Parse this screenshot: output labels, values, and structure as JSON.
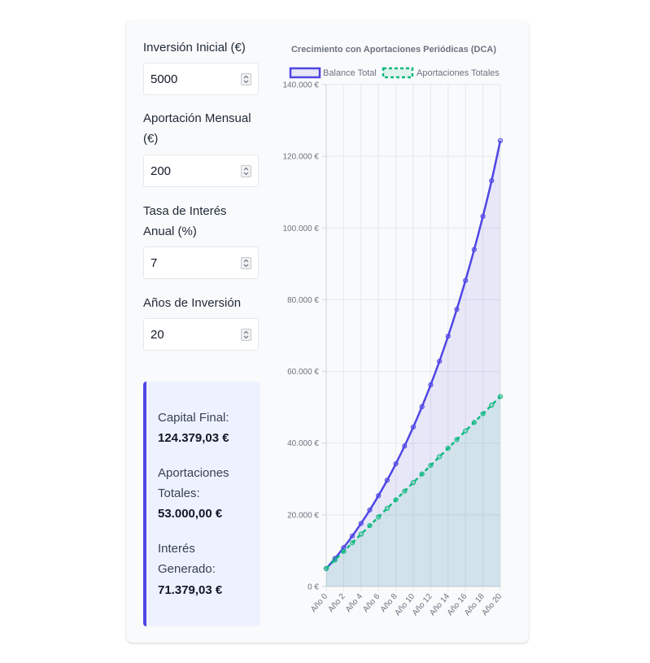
{
  "form": {
    "initial": {
      "label": "Inversión Inicial (€)",
      "value": "5000"
    },
    "monthly": {
      "label": "Aportación Mensual (€)",
      "value": "200"
    },
    "rate": {
      "label": "Tasa de Interés Anual (%)",
      "value": "7"
    },
    "years": {
      "label": "Años de Inversión",
      "value": "20"
    }
  },
  "results": {
    "final_label": "Capital Final:",
    "final_value": "124.379,03 €",
    "contrib_label": "Aportaciones Totales:",
    "contrib_value": "53.000,00 €",
    "interest_label": "Interés Generado:",
    "interest_value": "71.379,03 €"
  },
  "icons": {
    "spinner": "number-spinner-icon"
  },
  "colors": {
    "balance": "#4f46e5",
    "contributions": "#10b981",
    "accent": "#4f46e5",
    "results_bg": "#eef2ff"
  },
  "chart_data": {
    "type": "line",
    "title": "Crecimiento con Aportaciones Periódicas (DCA)",
    "legend_position": "top",
    "grid": true,
    "ylim": [
      0,
      140000
    ],
    "y_ticks": [
      "0 €",
      "20.000 €",
      "40.000 €",
      "60.000 €",
      "80.000 €",
      "100.000 €",
      "120.000 €",
      "140.000 €"
    ],
    "x": [
      "Año 0",
      "Año 1",
      "Año 2",
      "Año 3",
      "Año 4",
      "Año 5",
      "Año 6",
      "Año 7",
      "Año 8",
      "Año 9",
      "Año 10",
      "Año 11",
      "Año 12",
      "Año 13",
      "Año 14",
      "Año 15",
      "Año 16",
      "Año 17",
      "Año 18",
      "Año 19",
      "Año 20"
    ],
    "x_tick_labels": [
      "Año 0",
      "Año 2",
      "Año 4",
      "Año 6",
      "Año 8",
      "Año 10",
      "Año 12",
      "Año 14",
      "Año 16",
      "Año 18",
      "Año 20"
    ],
    "series": [
      {
        "name": "Balance Total",
        "style": "solid-area",
        "values": [
          5000,
          7827,
          10859,
          14110,
          17596,
          21334,
          25343,
          29641,
          34250,
          39192,
          44491,
          50173,
          56266,
          62799,
          69804,
          77316,
          85370,
          94007,
          103268,
          113198,
          124379
        ]
      },
      {
        "name": "Aportaciones Totales",
        "style": "dashed-area",
        "values": [
          5000,
          7400,
          9800,
          12200,
          14600,
          17000,
          19400,
          21800,
          24200,
          26600,
          29000,
          31400,
          33800,
          36200,
          38600,
          41000,
          43400,
          45800,
          48200,
          50600,
          53000
        ]
      }
    ]
  }
}
